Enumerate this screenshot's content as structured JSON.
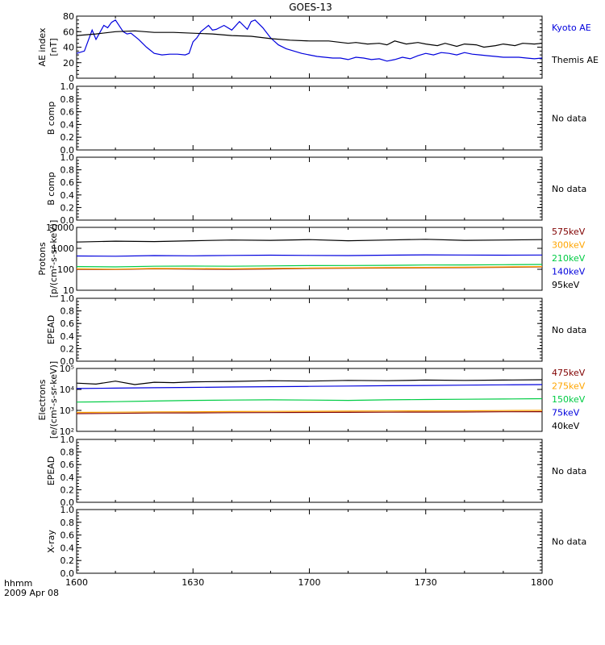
{
  "figure": {
    "title": "GOES-13",
    "time_label": "hhmm",
    "date_label": "2009 Apr 08",
    "x_ticks": [
      "1600",
      "1630",
      "1700",
      "1730",
      "1800"
    ]
  },
  "chart_data": [
    {
      "id": "ae",
      "type": "line",
      "ylabel": [
        "AE index",
        "[nT]"
      ],
      "ylim": [
        0,
        80
      ],
      "yticks": [
        "0",
        "20",
        "40",
        "60",
        "80"
      ],
      "x_range_minutes": [
        0,
        120
      ],
      "series": [
        {
          "name": "Kyoto AE",
          "color": "#0000dd",
          "x": [
            0,
            2,
            4,
            5,
            7,
            8,
            9,
            10,
            12,
            13,
            14,
            16,
            17,
            18,
            20,
            22,
            24,
            26,
            28,
            29,
            30,
            31,
            32,
            34,
            35,
            36,
            38,
            40,
            42,
            44,
            45,
            46,
            48,
            50,
            52,
            54,
            56,
            58,
            60,
            62,
            64,
            66,
            68,
            70,
            72,
            74,
            76,
            78,
            80,
            82,
            84,
            86,
            88,
            90,
            92,
            94,
            96,
            98,
            100,
            102,
            104,
            106,
            108,
            110,
            112,
            114,
            116,
            118,
            120
          ],
          "y": [
            32,
            35,
            62,
            50,
            68,
            65,
            72,
            75,
            60,
            57,
            58,
            50,
            45,
            40,
            32,
            30,
            31,
            31,
            30,
            32,
            47,
            52,
            60,
            68,
            62,
            63,
            68,
            62,
            73,
            63,
            73,
            75,
            65,
            52,
            43,
            38,
            35,
            32,
            30,
            28,
            27,
            26,
            26,
            24,
            27,
            26,
            24,
            25,
            22,
            24,
            27,
            25,
            29,
            32,
            30,
            33,
            32,
            30,
            33,
            31,
            30,
            29,
            28,
            27,
            27,
            27,
            26,
            25,
            26
          ]
        },
        {
          "name": "Themis AE",
          "color": "#000000",
          "x": [
            0,
            5,
            10,
            15,
            20,
            25,
            30,
            35,
            40,
            45,
            50,
            55,
            60,
            65,
            70,
            72,
            75,
            78,
            80,
            82,
            85,
            88,
            90,
            93,
            95,
            98,
            100,
            103,
            105,
            108,
            110,
            113,
            115,
            118,
            120
          ],
          "y": [
            55,
            57,
            60,
            61,
            59,
            59,
            58,
            57,
            55,
            54,
            51,
            49,
            48,
            48,
            45,
            46,
            44,
            45,
            43,
            48,
            44,
            46,
            44,
            42,
            45,
            41,
            44,
            43,
            40,
            42,
            44,
            42,
            45,
            44,
            45
          ]
        }
      ]
    },
    {
      "id": "bcomp1",
      "type": "line",
      "ylabel": [
        "B comp"
      ],
      "ylim": [
        0,
        1
      ],
      "yticks": [
        "0.0",
        "0.2",
        "0.4",
        "0.6",
        "0.8",
        "1.0"
      ],
      "note": "No data",
      "series": []
    },
    {
      "id": "bcomp2",
      "type": "line",
      "ylabel": [
        "B comp"
      ],
      "ylim": [
        0,
        1
      ],
      "yticks": [
        "0.0",
        "0.2",
        "0.4",
        "0.6",
        "0.8",
        "1.0"
      ],
      "note": "No data",
      "series": []
    },
    {
      "id": "protons",
      "type": "line",
      "scale": "log",
      "ylabel": [
        "Protons",
        "[p/(cm²-s-sr-keV)]"
      ],
      "ylim": [
        10,
        10000
      ],
      "yticks": [
        "10",
        "100",
        "1000",
        "10000"
      ],
      "x_range_minutes": [
        0,
        120
      ],
      "series": [
        {
          "name": "575keV",
          "color": "#800000",
          "x": [
            0,
            10,
            20,
            30,
            40,
            50,
            60,
            70,
            80,
            90,
            100,
            110,
            120
          ],
          "y": [
            100,
            98,
            105,
            102,
            100,
            104,
            110,
            112,
            115,
            118,
            120,
            125,
            130
          ]
        },
        {
          "name": "300keV",
          "color": "#ffa500",
          "x": [
            0,
            10,
            20,
            30,
            40,
            50,
            60,
            70,
            80,
            90,
            100,
            110,
            120
          ],
          "y": [
            105,
            102,
            110,
            108,
            106,
            110,
            115,
            118,
            120,
            124,
            126,
            130,
            135
          ]
        },
        {
          "name": "210keV",
          "color": "#00cc44",
          "x": [
            0,
            10,
            20,
            30,
            40,
            50,
            60,
            70,
            80,
            90,
            100,
            110,
            120
          ],
          "y": [
            135,
            130,
            140,
            142,
            140,
            145,
            150,
            152,
            155,
            160,
            162,
            165,
            170
          ]
        },
        {
          "name": "140keV",
          "color": "#0000dd",
          "x": [
            0,
            10,
            20,
            30,
            40,
            50,
            60,
            70,
            80,
            90,
            100,
            110,
            120
          ],
          "y": [
            430,
            420,
            450,
            440,
            460,
            470,
            460,
            450,
            470,
            490,
            480,
            470,
            480
          ]
        },
        {
          "name": "95keV",
          "color": "#000000",
          "x": [
            0,
            10,
            20,
            30,
            40,
            50,
            60,
            70,
            80,
            90,
            100,
            110,
            120
          ],
          "y": [
            2000,
            2200,
            2100,
            2300,
            2500,
            2400,
            2600,
            2300,
            2500,
            2700,
            2400,
            2500,
            2600
          ]
        }
      ]
    },
    {
      "id": "epead1",
      "type": "line",
      "ylabel": [
        "EPEAD"
      ],
      "ylim": [
        0,
        1
      ],
      "yticks": [
        "0.0",
        "0.2",
        "0.4",
        "0.6",
        "0.8",
        "1.0"
      ],
      "note": "No data",
      "series": []
    },
    {
      "id": "electrons",
      "type": "line",
      "scale": "log",
      "ylabel": [
        "Electrons",
        "[e/(cm²-s-sr-keV)]"
      ],
      "ylim": [
        100,
        100000
      ],
      "yticks": [
        "10²",
        "10³",
        "10⁴",
        "10⁵"
      ],
      "x_range_minutes": [
        0,
        120
      ],
      "series": [
        {
          "name": "475keV",
          "color": "#800000",
          "x": [
            0,
            10,
            20,
            30,
            40,
            50,
            60,
            70,
            80,
            90,
            100,
            110,
            120
          ],
          "y": [
            700,
            720,
            750,
            760,
            780,
            790,
            800,
            810,
            820,
            830,
            840,
            860,
            870
          ]
        },
        {
          "name": "275keV",
          "color": "#ffa500",
          "x": [
            0,
            10,
            20,
            30,
            40,
            50,
            60,
            70,
            80,
            90,
            100,
            110,
            120
          ],
          "y": [
            800,
            820,
            850,
            860,
            880,
            900,
            910,
            920,
            940,
            950,
            960,
            980,
            1000
          ]
        },
        {
          "name": "150keV",
          "color": "#00cc44",
          "x": [
            0,
            10,
            20,
            30,
            40,
            50,
            60,
            70,
            80,
            90,
            100,
            110,
            120
          ],
          "y": [
            2500,
            2600,
            2800,
            3000,
            3100,
            3200,
            3100,
            3000,
            3200,
            3300,
            3400,
            3500,
            3600
          ]
        },
        {
          "name": "75keV",
          "color": "#0000dd",
          "x": [
            0,
            10,
            20,
            30,
            40,
            50,
            60,
            70,
            80,
            90,
            100,
            110,
            120
          ],
          "y": [
            11000,
            11500,
            12000,
            12500,
            13000,
            13500,
            14000,
            14500,
            15000,
            15500,
            16000,
            16500,
            17000
          ]
        },
        {
          "name": "40keV",
          "color": "#000000",
          "x": [
            0,
            5,
            10,
            15,
            20,
            25,
            30,
            40,
            50,
            60,
            70,
            80,
            90,
            100,
            110,
            120
          ],
          "y": [
            20000,
            18000,
            25000,
            17000,
            22000,
            21000,
            23000,
            24000,
            26000,
            25000,
            27000,
            26000,
            28000,
            27000,
            28000,
            29000
          ]
        }
      ]
    },
    {
      "id": "epead2",
      "type": "line",
      "ylabel": [
        "EPEAD"
      ],
      "ylim": [
        0,
        1
      ],
      "yticks": [
        "0.0",
        "0.2",
        "0.4",
        "0.6",
        "0.8",
        "1.0"
      ],
      "note": "No data",
      "series": []
    },
    {
      "id": "xray",
      "type": "line",
      "ylabel": [
        "X-ray"
      ],
      "ylim": [
        0,
        1
      ],
      "yticks": [
        "0.0",
        "0.2",
        "0.4",
        "0.6",
        "0.8",
        "1.0"
      ],
      "note": "No data",
      "series": []
    }
  ]
}
